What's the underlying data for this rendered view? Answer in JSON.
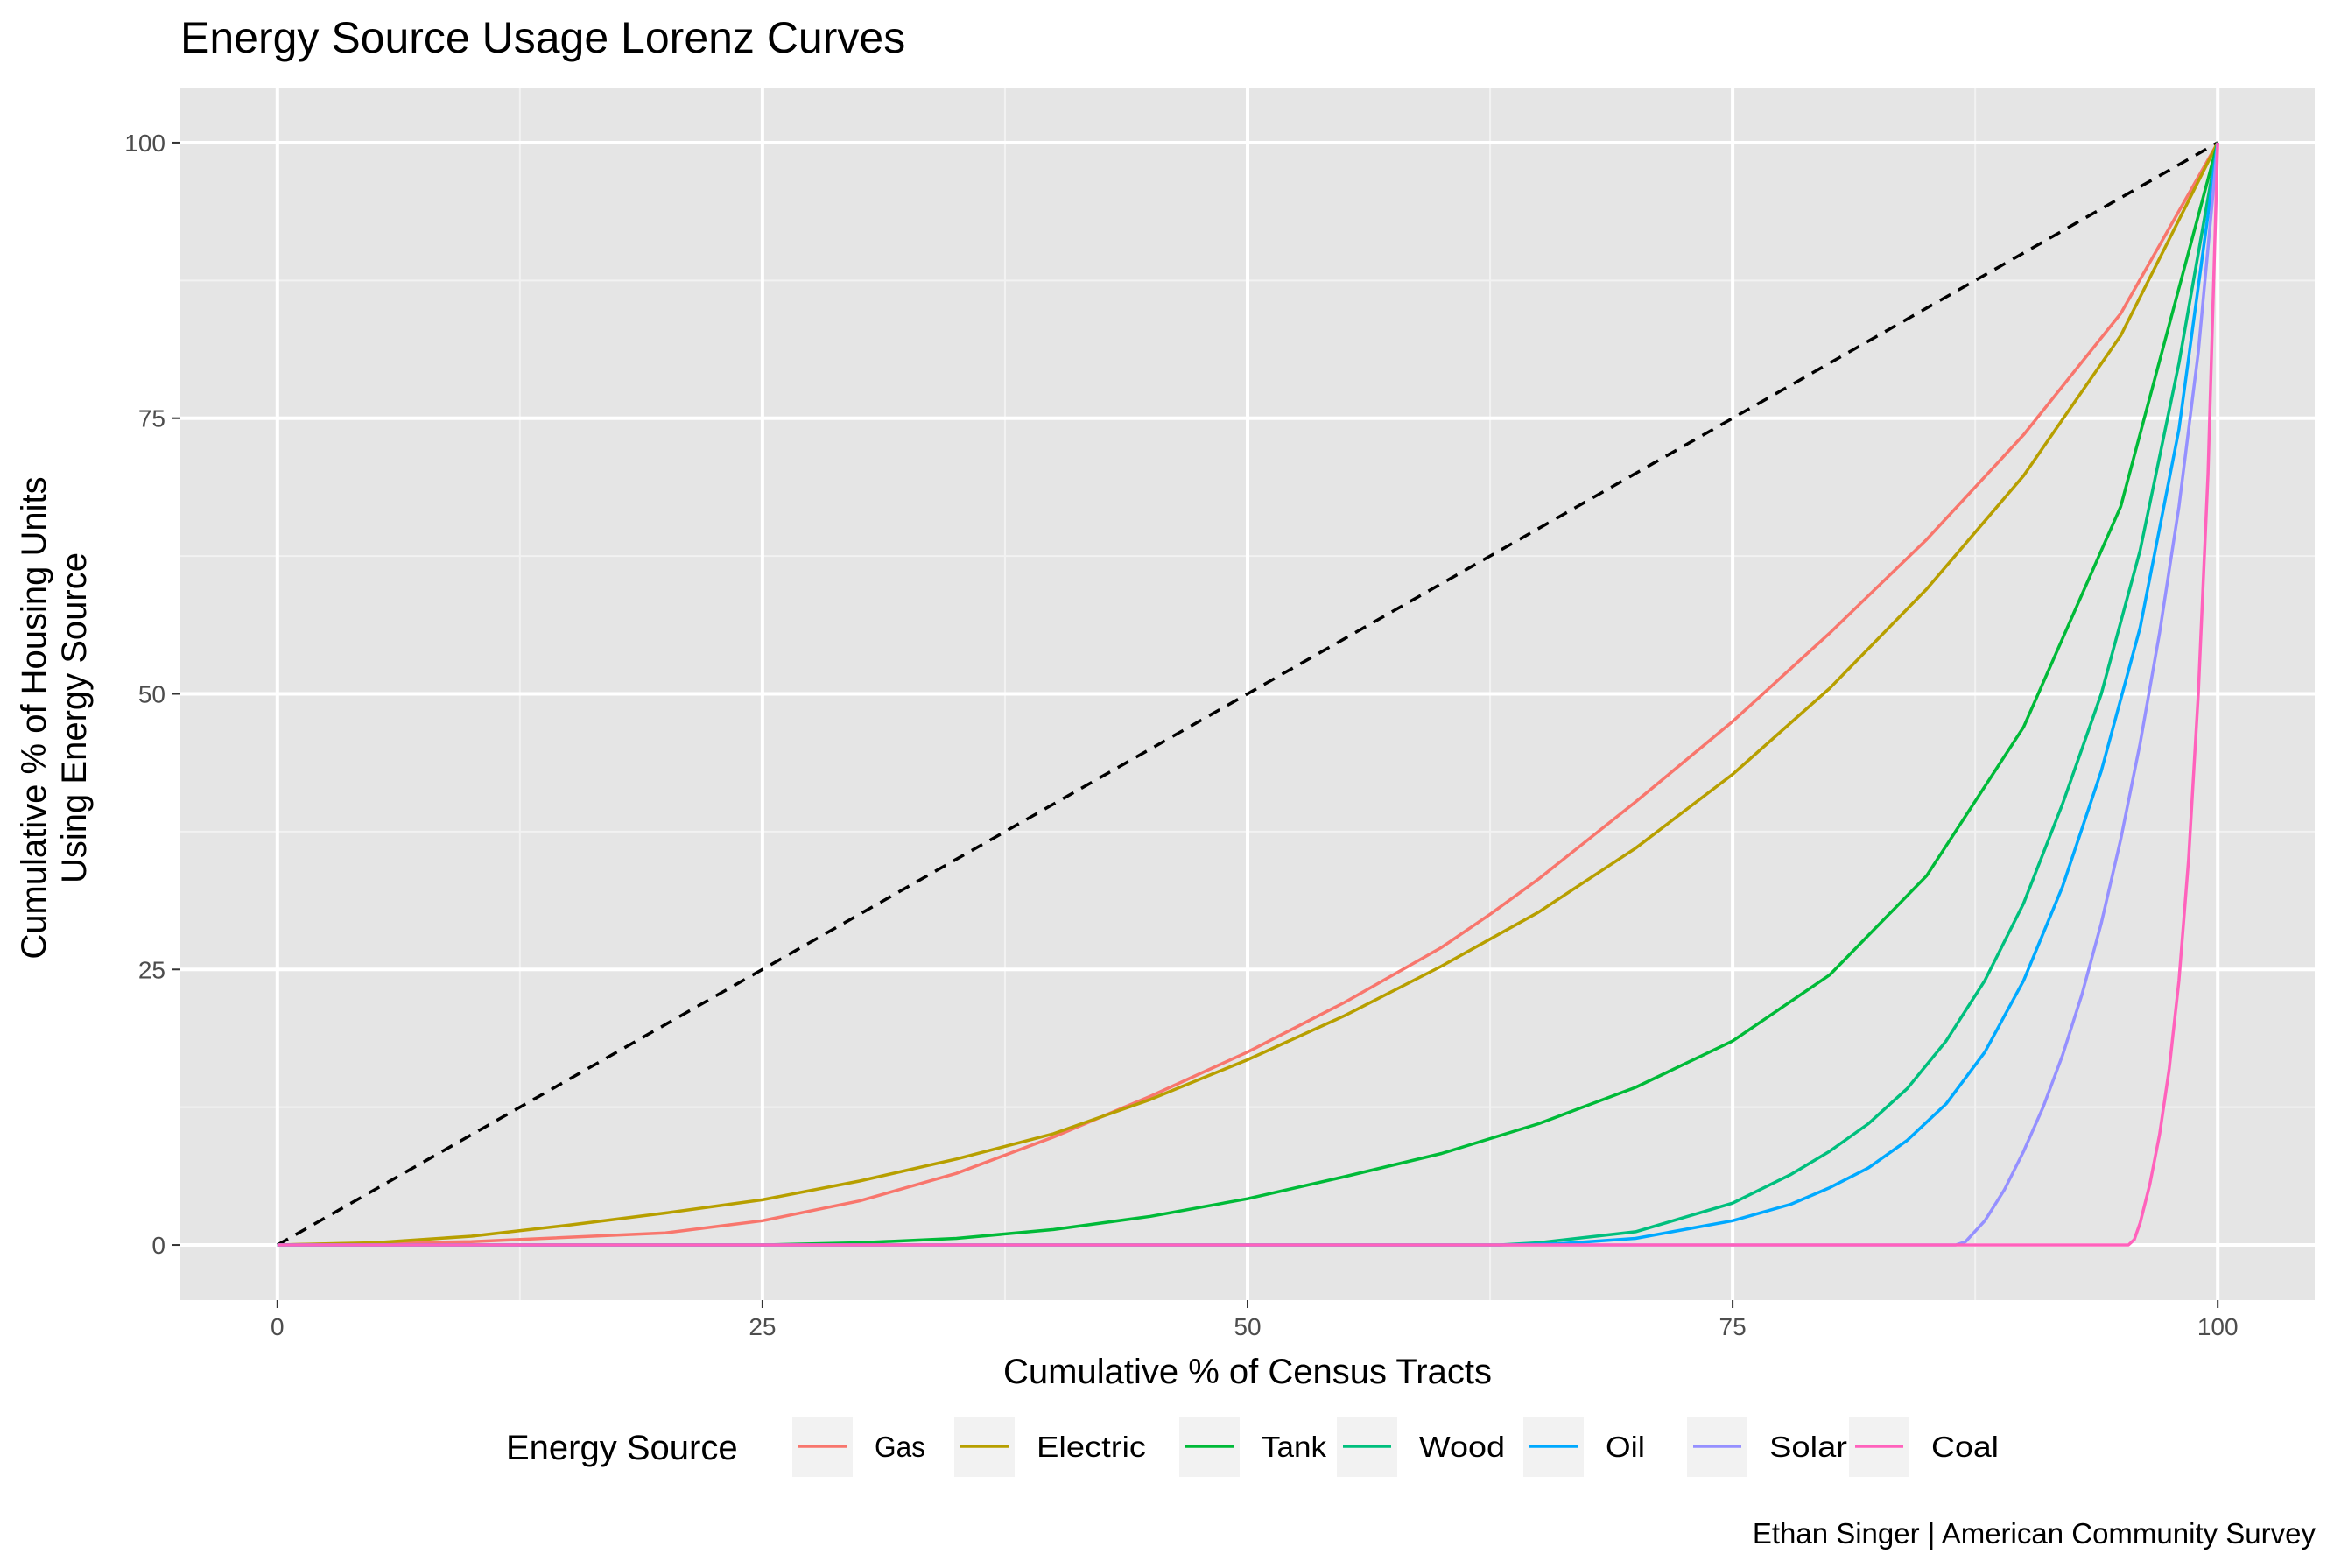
{
  "chart_data": {
    "type": "line",
    "title": "Energy Source Usage Lorenz Curves",
    "xlabel": "Cumulative % of Census Tracts",
    "ylabel_lines": [
      "Cumulative % of Housing Units",
      "Using Energy Source"
    ],
    "xlim": [
      -5,
      105
    ],
    "ylim": [
      -5,
      105
    ],
    "x_ticks": [
      0,
      25,
      50,
      75,
      100
    ],
    "y_ticks": [
      0,
      25,
      50,
      75,
      100
    ],
    "x_minor": [
      12.5,
      37.5,
      62.5,
      87.5
    ],
    "y_minor": [
      12.5,
      37.5,
      62.5,
      87.5
    ],
    "grid": true,
    "legend_title": "Energy Source",
    "legend_position": "bottom",
    "caption": "Ethan Singer | American Community Survey",
    "equality_line": {
      "x": [
        0,
        100
      ],
      "y": [
        0,
        100
      ],
      "style": "dashed",
      "color": "#000000"
    },
    "series": [
      {
        "name": "Gas",
        "color": "#F8766D",
        "points": [
          [
            0,
            0
          ],
          [
            10,
            0.3
          ],
          [
            20,
            1.1
          ],
          [
            25,
            2.2
          ],
          [
            30,
            4
          ],
          [
            35,
            6.5
          ],
          [
            40,
            9.8
          ],
          [
            45,
            13.5
          ],
          [
            50,
            17.5
          ],
          [
            55,
            22
          ],
          [
            60,
            27
          ],
          [
            62.5,
            30
          ],
          [
            65,
            33.2
          ],
          [
            70,
            40.2
          ],
          [
            75,
            47.5
          ],
          [
            80,
            55.5
          ],
          [
            85,
            64
          ],
          [
            90,
            73.5
          ],
          [
            95,
            84.5
          ],
          [
            100,
            100
          ]
        ]
      },
      {
        "name": "Electric",
        "color": "#B79F00",
        "points": [
          [
            0,
            0
          ],
          [
            5,
            0.2
          ],
          [
            10,
            0.8
          ],
          [
            15,
            1.8
          ],
          [
            20,
            2.9
          ],
          [
            25,
            4.1
          ],
          [
            30,
            5.8
          ],
          [
            35,
            7.8
          ],
          [
            40,
            10.1
          ],
          [
            45,
            13.2
          ],
          [
            50,
            16.8
          ],
          [
            55,
            20.8
          ],
          [
            60,
            25.3
          ],
          [
            65,
            30.2
          ],
          [
            70,
            36
          ],
          [
            75,
            42.7
          ],
          [
            80,
            50.5
          ],
          [
            85,
            59.5
          ],
          [
            90,
            69.8
          ],
          [
            95,
            82.5
          ],
          [
            100,
            100
          ]
        ]
      },
      {
        "name": "Tank",
        "color": "#00BA38",
        "points": [
          [
            0,
            0
          ],
          [
            25,
            0
          ],
          [
            30,
            0.2
          ],
          [
            35,
            0.6
          ],
          [
            40,
            1.4
          ],
          [
            45,
            2.6
          ],
          [
            50,
            4.2
          ],
          [
            55,
            6.2
          ],
          [
            60,
            8.3
          ],
          [
            65,
            11
          ],
          [
            70,
            14.3
          ],
          [
            75,
            18.5
          ],
          [
            80,
            24.5
          ],
          [
            85,
            33.5
          ],
          [
            90,
            47
          ],
          [
            95,
            67
          ],
          [
            100,
            100
          ]
        ]
      },
      {
        "name": "Wood",
        "color": "#00BF7D",
        "points": [
          [
            0,
            0
          ],
          [
            63,
            0
          ],
          [
            65,
            0.2
          ],
          [
            70,
            1.2
          ],
          [
            75,
            3.8
          ],
          [
            78,
            6.4
          ],
          [
            80,
            8.5
          ],
          [
            82,
            11
          ],
          [
            84,
            14.2
          ],
          [
            86,
            18.5
          ],
          [
            88,
            24
          ],
          [
            90,
            31
          ],
          [
            92,
            40
          ],
          [
            94,
            50
          ],
          [
            96,
            63
          ],
          [
            98,
            80
          ],
          [
            100,
            100
          ]
        ]
      },
      {
        "name": "Oil",
        "color": "#00A9FF",
        "points": [
          [
            0,
            0
          ],
          [
            63,
            0
          ],
          [
            66,
            0.1
          ],
          [
            70,
            0.6
          ],
          [
            75,
            2.2
          ],
          [
            78,
            3.7
          ],
          [
            80,
            5.2
          ],
          [
            82,
            7
          ],
          [
            84,
            9.5
          ],
          [
            86,
            12.8
          ],
          [
            88,
            17.5
          ],
          [
            90,
            24
          ],
          [
            92,
            32.5
          ],
          [
            94,
            43
          ],
          [
            96,
            56
          ],
          [
            98,
            74
          ],
          [
            100,
            100
          ]
        ]
      },
      {
        "name": "Solar",
        "color": "#9590FF",
        "points": [
          [
            0,
            0
          ],
          [
            86.5,
            0
          ],
          [
            87,
            0.3
          ],
          [
            88,
            2.2
          ],
          [
            89,
            5
          ],
          [
            90,
            8.5
          ],
          [
            91,
            12.5
          ],
          [
            92,
            17.2
          ],
          [
            93,
            22.7
          ],
          [
            94,
            29.2
          ],
          [
            95,
            36.8
          ],
          [
            96,
            45.5
          ],
          [
            97,
            55.5
          ],
          [
            98,
            67
          ],
          [
            99,
            81
          ],
          [
            100,
            100
          ]
        ]
      },
      {
        "name": "Coal",
        "color": "#FF62BC",
        "points": [
          [
            0,
            0
          ],
          [
            95.4,
            0
          ],
          [
            95.7,
            0.5
          ],
          [
            96,
            2
          ],
          [
            96.5,
            5.5
          ],
          [
            97,
            10
          ],
          [
            97.5,
            16
          ],
          [
            98,
            24
          ],
          [
            98.5,
            35
          ],
          [
            99,
            50
          ],
          [
            99.5,
            70
          ],
          [
            100,
            100
          ]
        ]
      }
    ]
  }
}
